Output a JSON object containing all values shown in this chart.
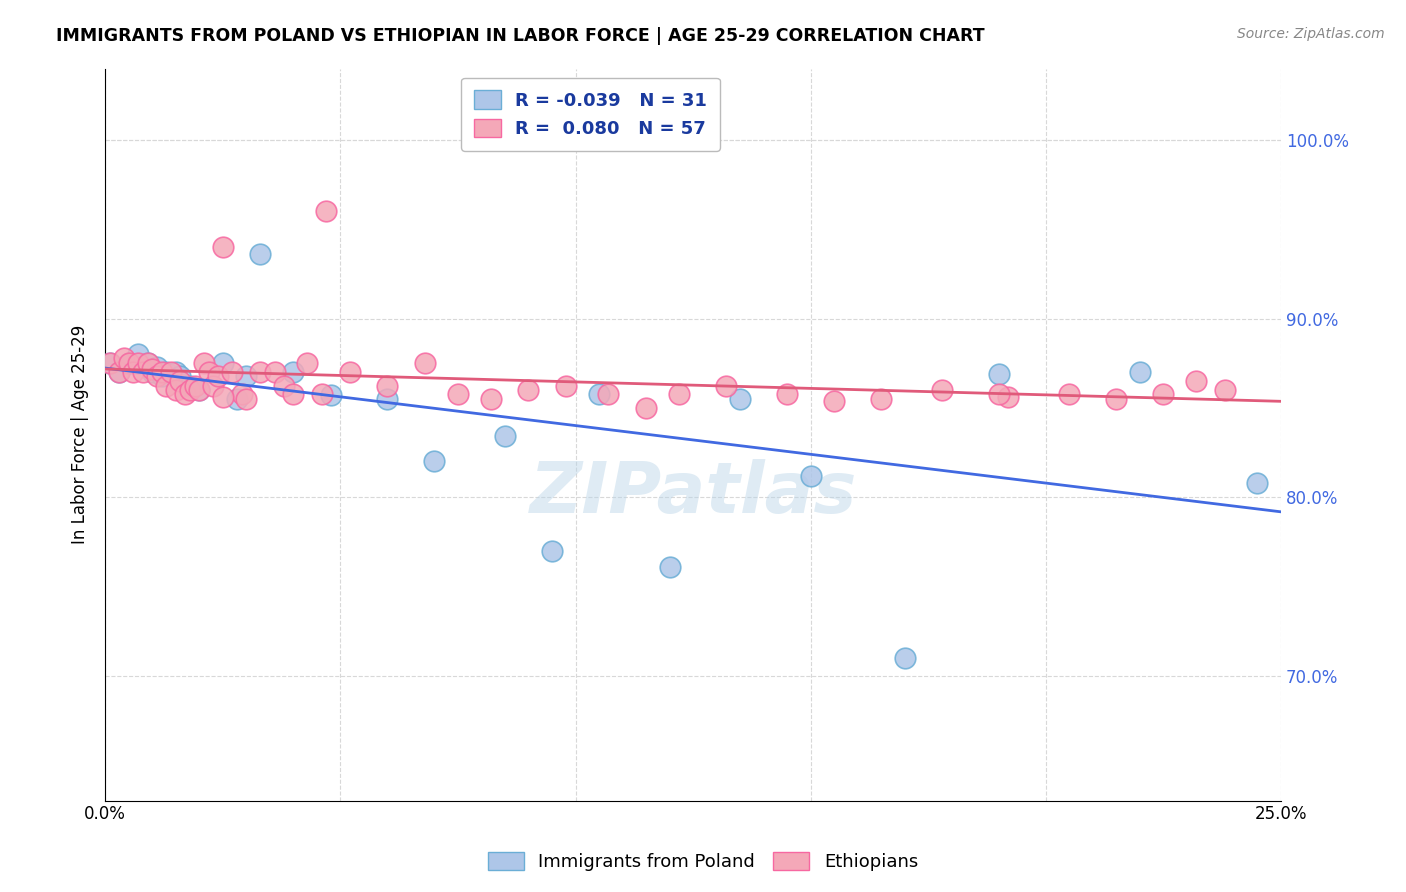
{
  "title": "IMMIGRANTS FROM POLAND VS ETHIOPIAN IN LABOR FORCE | AGE 25-29 CORRELATION CHART",
  "source": "Source: ZipAtlas.com",
  "ylabel": "In Labor Force | Age 25-29",
  "xlim": [
    0.0,
    0.25
  ],
  "ylim": [
    0.63,
    1.04
  ],
  "xticks": [
    0.0,
    0.05,
    0.1,
    0.15,
    0.2,
    0.25
  ],
  "xticklabels": [
    "0.0%",
    "",
    "",
    "",
    "",
    "25.0%"
  ],
  "yticks": [
    0.7,
    0.8,
    0.9,
    1.0
  ],
  "yticklabels": [
    "70.0%",
    "80.0%",
    "90.0%",
    "100.0%"
  ],
  "poland_color": "#aec6e8",
  "ethiopian_color": "#f4a8b8",
  "poland_edge": "#6baed6",
  "ethiopian_edge": "#f768a1",
  "trendline_poland_color": "#4169e1",
  "trendline_ethiopian_color": "#e05a7a",
  "legend_R_poland": "-0.039",
  "legend_N_poland": "31",
  "legend_R_ethiopian": "0.080",
  "legend_N_ethiopian": "57",
  "poland_x": [
    0.001,
    0.003,
    0.005,
    0.007,
    0.009,
    0.01,
    0.011,
    0.012,
    0.013,
    0.015,
    0.016,
    0.018,
    0.02,
    0.025,
    0.028,
    0.03,
    0.033,
    0.04,
    0.048,
    0.06,
    0.07,
    0.085,
    0.095,
    0.105,
    0.12,
    0.135,
    0.15,
    0.17,
    0.19,
    0.22,
    0.245
  ],
  "poland_y": [
    0.875,
    0.87,
    0.875,
    0.88,
    0.875,
    0.87,
    0.873,
    0.868,
    0.87,
    0.87,
    0.868,
    0.862,
    0.86,
    0.875,
    0.855,
    0.868,
    0.936,
    0.87,
    0.857,
    0.855,
    0.82,
    0.834,
    0.77,
    0.858,
    0.761,
    0.855,
    0.812,
    0.71,
    0.869,
    0.87,
    0.808
  ],
  "ethiopian_x": [
    0.001,
    0.003,
    0.004,
    0.005,
    0.006,
    0.007,
    0.008,
    0.009,
    0.01,
    0.011,
    0.012,
    0.013,
    0.014,
    0.015,
    0.016,
    0.017,
    0.018,
    0.019,
    0.02,
    0.021,
    0.022,
    0.023,
    0.024,
    0.025,
    0.027,
    0.029,
    0.03,
    0.033,
    0.036,
    0.038,
    0.04,
    0.043,
    0.047,
    0.052,
    0.06,
    0.068,
    0.075,
    0.082,
    0.09,
    0.098,
    0.107,
    0.115,
    0.122,
    0.132,
    0.145,
    0.155,
    0.165,
    0.178,
    0.192,
    0.205,
    0.215,
    0.225,
    0.232,
    0.238,
    0.025,
    0.046,
    0.19
  ],
  "ethiopian_y": [
    0.875,
    0.87,
    0.878,
    0.875,
    0.87,
    0.875,
    0.87,
    0.875,
    0.872,
    0.868,
    0.87,
    0.862,
    0.87,
    0.86,
    0.865,
    0.858,
    0.86,
    0.862,
    0.86,
    0.875,
    0.87,
    0.862,
    0.868,
    0.94,
    0.87,
    0.858,
    0.855,
    0.87,
    0.87,
    0.862,
    0.858,
    0.875,
    0.96,
    0.87,
    0.862,
    0.875,
    0.858,
    0.855,
    0.86,
    0.862,
    0.858,
    0.85,
    0.858,
    0.862,
    0.858,
    0.854,
    0.855,
    0.86,
    0.856,
    0.858,
    0.855,
    0.858,
    0.865,
    0.86,
    0.856,
    0.858,
    0.858
  ],
  "watermark": "ZIPatlas",
  "background_color": "#ffffff",
  "grid_color": "#d8d8d8"
}
